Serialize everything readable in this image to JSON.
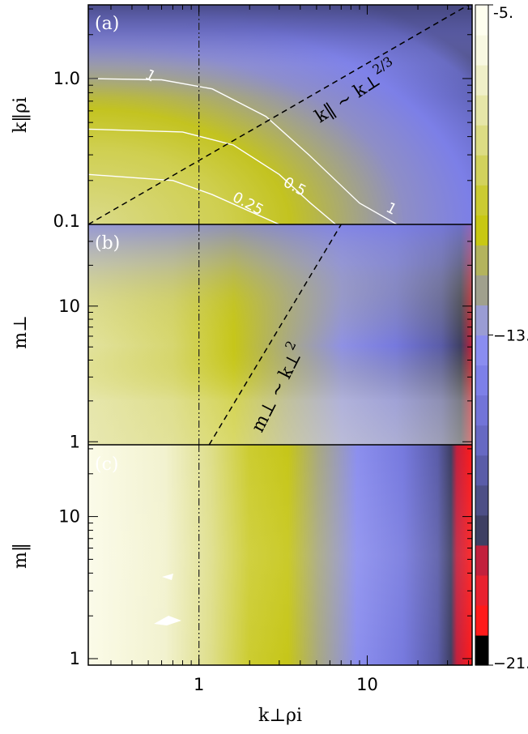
{
  "chart_data": [
    {
      "type": "heatmap",
      "panel": "(a)",
      "xlabel": "k⊥ρi",
      "ylabel": "k‖ρi",
      "xscale": "log",
      "yscale": "log",
      "xlim": [
        0.22,
        42
      ],
      "ylim": [
        0.1,
        3.2
      ],
      "yticks": [
        {
          "value": 0.1,
          "label": "0.1"
        },
        {
          "value": 1.0,
          "label": "1.0"
        }
      ],
      "reference_line": {
        "x": 1.0,
        "style": "dash-dot"
      },
      "scaling_line": {
        "label": "k‖ ∼ k⊥",
        "exponent_label": "2/3",
        "exponent": 0.6667,
        "from": [
          0.22,
          0.1
        ],
        "to": [
          40,
          3.2
        ]
      },
      "contours": [
        {
          "level_label": "1",
          "points": [
            [
              0.22,
              1.0
            ],
            [
              0.6,
              0.98
            ],
            [
              1.2,
              0.85
            ],
            [
              2.5,
              0.55
            ],
            [
              4.5,
              0.3
            ],
            [
              9,
              0.14
            ],
            [
              15,
              0.1
            ]
          ]
        },
        {
          "level_label": "0.5",
          "points": [
            [
              0.22,
              0.45
            ],
            [
              0.8,
              0.43
            ],
            [
              1.6,
              0.35
            ],
            [
              3,
              0.22
            ],
            [
              4.6,
              0.14
            ],
            [
              6.5,
              0.1
            ]
          ]
        },
        {
          "level_label": "0.25",
          "points": [
            [
              0.22,
              0.22
            ],
            [
              0.7,
              0.2
            ],
            [
              1.2,
              0.16
            ],
            [
              2.1,
              0.12
            ],
            [
              3,
              0.1
            ]
          ]
        }
      ],
      "contour_labels": [
        {
          "label": "1",
          "x": 0.5,
          "y": 0.98
        },
        {
          "label": "1",
          "x": 13.5,
          "y": 0.12
        },
        {
          "label": "0.5",
          "x": 3.6,
          "y": 0.17
        },
        {
          "label": "0.25",
          "x": 1.9,
          "y": 0.13
        }
      ]
    },
    {
      "type": "heatmap",
      "panel": "(b)",
      "xlabel": "",
      "ylabel": "m⊥",
      "xscale": "log",
      "yscale": "log",
      "xlim": [
        0.22,
        42
      ],
      "ylim": [
        0.95,
        40
      ],
      "yticks": [
        {
          "value": 1,
          "label": "1"
        },
        {
          "value": 10,
          "label": "10"
        }
      ],
      "reference_line": {
        "x": 1.0,
        "style": "dash-dot"
      },
      "scaling_line": {
        "label": "m⊥ ∼ k⊥",
        "exponent_label": "2",
        "exponent": 2,
        "from": [
          1.15,
          0.95
        ],
        "to": [
          7,
          40
        ]
      }
    },
    {
      "type": "heatmap",
      "panel": "(c)",
      "xlabel": "k⊥ρi",
      "ylabel": "m‖",
      "xscale": "log",
      "yscale": "log",
      "xlim": [
        0.22,
        42
      ],
      "ylim": [
        0.9,
        32
      ],
      "yticks": [
        {
          "value": 1,
          "label": "1"
        },
        {
          "value": 10,
          "label": "10"
        }
      ],
      "xticks": [
        {
          "value": 1,
          "label": "1"
        },
        {
          "value": 10,
          "label": "10"
        }
      ],
      "reference_line": {
        "x": 1.0,
        "style": "dash-dot"
      }
    }
  ],
  "colorbar": {
    "min": -21,
    "max": -5,
    "tick_labels": [
      {
        "value": -5,
        "label": "-5."
      },
      {
        "value": -13,
        "label": "−13."
      },
      {
        "value": -21,
        "label": "−21."
      }
    ],
    "colors": [
      "#000000",
      "#ff1a1a",
      "#e8212f",
      "#c2203d",
      "#3e3f63",
      "#4d4f86",
      "#5a5ca8",
      "#6769c3",
      "#7274d8",
      "#7d80e8",
      "#8a8df0",
      "#9a9cd3",
      "#a0a08d",
      "#b3b35d",
      "#c8c813",
      "#cbcb32",
      "#d2d25c",
      "#dcdc84",
      "#e6e6a8",
      "#efefc8",
      "#f8f8e2",
      "#fefeef"
    ]
  }
}
